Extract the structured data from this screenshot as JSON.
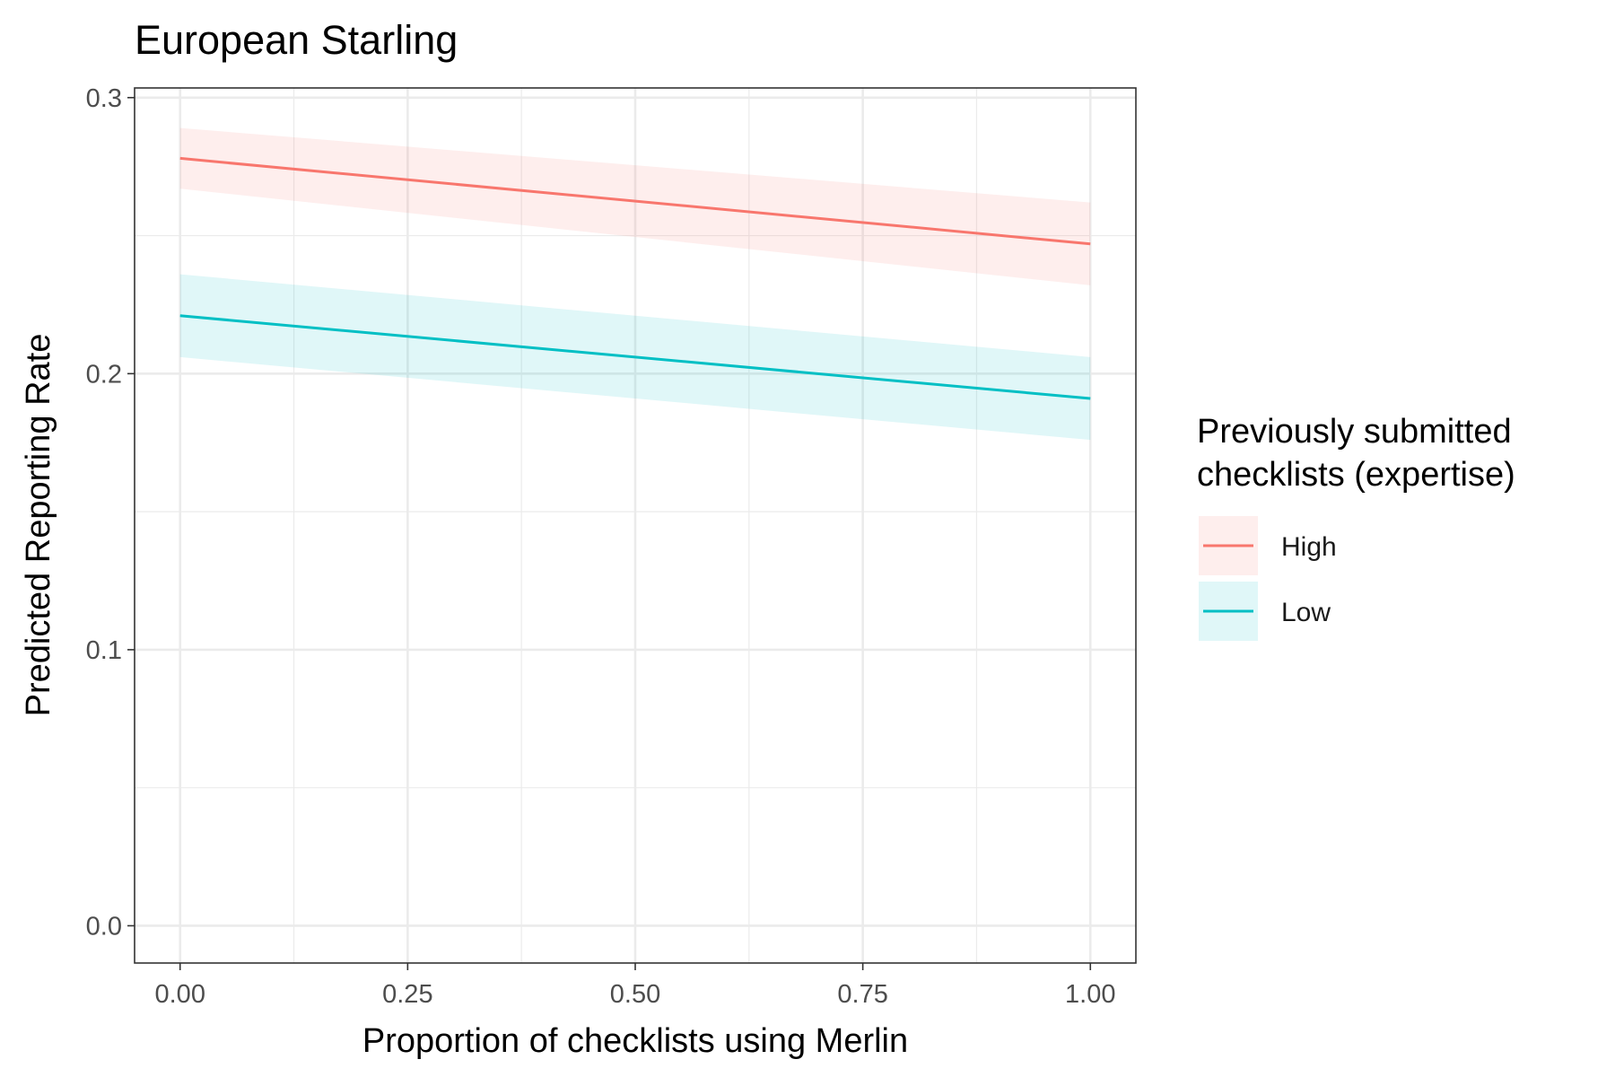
{
  "chart_data": {
    "type": "line",
    "title": "European Starling",
    "xlabel": "Proportion of checklists using Merlin",
    "ylabel": "Predicted Reporting Rate",
    "xlim": [
      -0.05,
      1.05
    ],
    "ylim": [
      -0.0135,
      0.3035
    ],
    "x_ticks": [
      0,
      0.25,
      0.5,
      0.75,
      1.0
    ],
    "x_tick_labels": [
      "0.00",
      "0.25",
      "0.50",
      "0.75",
      "1.00"
    ],
    "y_ticks": [
      0,
      0.1,
      0.2,
      0.3
    ],
    "y_tick_labels": [
      "0.0",
      "0.1",
      "0.2",
      "0.3"
    ],
    "grid": true,
    "legend": {
      "title_lines": [
        "Previously submitted",
        "checklists (expertise)"
      ],
      "position": "right"
    },
    "series": [
      {
        "name": "High",
        "color": "#F8766D",
        "x": [
          0,
          1
        ],
        "y": [
          0.278,
          0.247
        ],
        "ci_lower": [
          0.267,
          0.232
        ],
        "ci_upper": [
          0.289,
          0.262
        ]
      },
      {
        "name": "Low",
        "color": "#00BFC4",
        "x": [
          0,
          1
        ],
        "y": [
          0.221,
          0.191
        ],
        "ci_lower": [
          0.206,
          0.176
        ],
        "ci_upper": [
          0.236,
          0.206
        ]
      }
    ]
  }
}
